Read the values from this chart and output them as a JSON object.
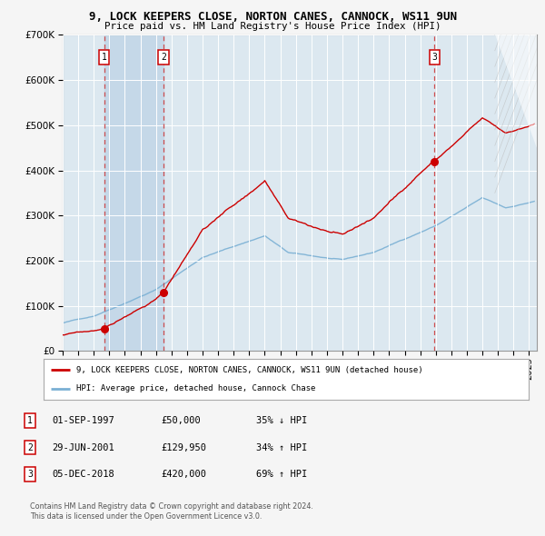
{
  "title": "9, LOCK KEEPERS CLOSE, NORTON CANES, CANNOCK, WS11 9UN",
  "subtitle": "Price paid vs. HM Land Registry's House Price Index (HPI)",
  "legend_house": "9, LOCK KEEPERS CLOSE, NORTON CANES, CANNOCK, WS11 9UN (detached house)",
  "legend_hpi": "HPI: Average price, detached house, Cannock Chase",
  "footer1": "Contains HM Land Registry data © Crown copyright and database right 2024.",
  "footer2": "This data is licensed under the Open Government Licence v3.0.",
  "transactions": [
    {
      "num": 1,
      "date": "01-SEP-1997",
      "price": 50000,
      "hpi_pct": "35% ↓ HPI"
    },
    {
      "num": 2,
      "date": "29-JUN-2001",
      "price": 129950,
      "hpi_pct": "34% ↑ HPI"
    },
    {
      "num": 3,
      "date": "05-DEC-2018",
      "price": 420000,
      "hpi_pct": "69% ↑ HPI"
    }
  ],
  "sale_dates_num": [
    1997.67,
    2001.49,
    2018.92
  ],
  "sale_prices": [
    50000,
    129950,
    420000
  ],
  "house_color": "#cc0000",
  "hpi_color": "#7ab0d4",
  "background_color": "#f5f5f5",
  "plot_bg_color": "#dce8f0",
  "shade_color": "#c5d8e8",
  "grid_color": "#ffffff",
  "ylim": [
    0,
    700000
  ],
  "xlim_start": 1995.0,
  "xlim_end": 2025.5
}
